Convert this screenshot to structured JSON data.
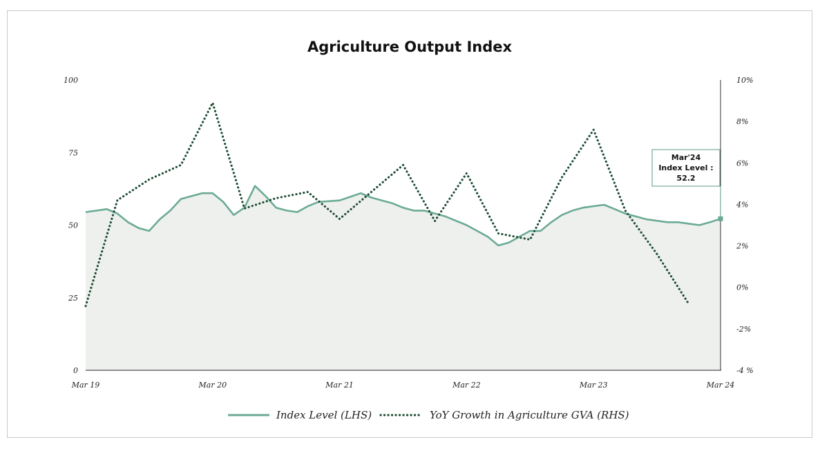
{
  "chart_data": {
    "type": "line",
    "title": "Agriculture Output Index",
    "x_labels": [
      "Mar 19",
      "Mar 20",
      "Mar 21",
      "Mar 22",
      "Mar 23",
      "Mar 24"
    ],
    "left_axis": {
      "ticks": [
        "0",
        "25",
        "50",
        "75",
        "100"
      ],
      "range": [
        0,
        100
      ]
    },
    "right_axis": {
      "ticks": [
        "-4 %",
        "-2%",
        "0%",
        "2%",
        "4%",
        "6%",
        "8%",
        "10%"
      ],
      "range": [
        -4,
        10
      ]
    },
    "series": [
      {
        "name": "Index Level (LHS)",
        "axis": "left",
        "style": "solid",
        "fill": true,
        "color": "#6aaa94",
        "points": [
          [
            "Mar 19",
            54.5
          ],
          [
            "May 19",
            55.5
          ],
          [
            "Jun 19",
            54.0
          ],
          [
            "Jul 19",
            51.0
          ],
          [
            "Aug 19",
            49.0
          ],
          [
            "Sep 19",
            48.0
          ],
          [
            "Oct 19",
            52.0
          ],
          [
            "Nov 19",
            55.0
          ],
          [
            "Dec 19",
            59.0
          ],
          [
            "Jan 20",
            60.0
          ],
          [
            "Feb 20",
            61.0
          ],
          [
            "Mar 20",
            61.0
          ],
          [
            "Apr 20",
            58.0
          ],
          [
            "May 20",
            53.5
          ],
          [
            "Jun 20",
            56.0
          ],
          [
            "Jul 20",
            63.5
          ],
          [
            "Aug 20",
            60.0
          ],
          [
            "Sep 20",
            56.0
          ],
          [
            "Oct 20",
            55.0
          ],
          [
            "Nov 20",
            54.5
          ],
          [
            "Dec 20",
            56.5
          ],
          [
            "Jan 21",
            58.0
          ],
          [
            "Mar 21",
            58.5
          ],
          [
            "May 21",
            61.0
          ],
          [
            "Jun 21",
            59.5
          ],
          [
            "Jul 21",
            58.5
          ],
          [
            "Aug 21",
            57.5
          ],
          [
            "Sep 21",
            56.0
          ],
          [
            "Oct 21",
            55.0
          ],
          [
            "Nov 21",
            55.0
          ],
          [
            "Jan 22",
            53.0
          ],
          [
            "Mar 22",
            50.0
          ],
          [
            "Apr 22",
            48.0
          ],
          [
            "May 22",
            46.0
          ],
          [
            "Jun 22",
            43.0
          ],
          [
            "Jul 22",
            44.0
          ],
          [
            "Aug 22",
            46.0
          ],
          [
            "Sep 22",
            48.0
          ],
          [
            "Oct 22",
            48.0
          ],
          [
            "Nov 22",
            51.0
          ],
          [
            "Dec 22",
            53.5
          ],
          [
            "Jan 23",
            55.0
          ],
          [
            "Feb 23",
            56.0
          ],
          [
            "Mar 23",
            56.5
          ],
          [
            "Apr 23",
            57.0
          ],
          [
            "May 23",
            55.5
          ],
          [
            "Jun 23",
            54.0
          ],
          [
            "Jul 23",
            53.0
          ],
          [
            "Aug 23",
            52.0
          ],
          [
            "Sep 23",
            51.5
          ],
          [
            "Oct 23",
            51.0
          ],
          [
            "Nov 23",
            51.0
          ],
          [
            "Dec 23",
            50.5
          ],
          [
            "Jan 24",
            50.0
          ],
          [
            "Feb 24",
            51.0
          ],
          [
            "Mar 24",
            52.2
          ]
        ]
      },
      {
        "name": "YoY Growth in Agriculture GVA (RHS)",
        "axis": "right",
        "style": "dotted",
        "color": "#1f4d35",
        "points": [
          [
            "Mar 19",
            -0.9
          ],
          [
            "Jun 19",
            4.2
          ],
          [
            "Sep 19",
            5.2
          ],
          [
            "Dec 19",
            5.9
          ],
          [
            "Mar 20",
            8.9
          ],
          [
            "Jun 20",
            3.8
          ],
          [
            "Sep 20",
            4.3
          ],
          [
            "Dec 20",
            4.6
          ],
          [
            "Mar 21",
            3.3
          ],
          [
            "Jun 21",
            4.6
          ],
          [
            "Sep 21",
            5.9
          ],
          [
            "Dec 21",
            3.2
          ],
          [
            "Mar 22",
            5.5
          ],
          [
            "Jun 22",
            2.6
          ],
          [
            "Sep 22",
            2.3
          ],
          [
            "Dec 22",
            5.3
          ],
          [
            "Mar 23",
            7.6
          ],
          [
            "Jun 23",
            3.7
          ],
          [
            "Sep 23",
            1.6
          ],
          [
            "Dec 23",
            -0.8
          ]
        ]
      }
    ],
    "annotation": {
      "lines": [
        "Mar'24",
        "Index Level :",
        "52.2"
      ],
      "x": "Mar 24",
      "value": 52.2
    },
    "legend_position": "bottom",
    "grid": false
  }
}
